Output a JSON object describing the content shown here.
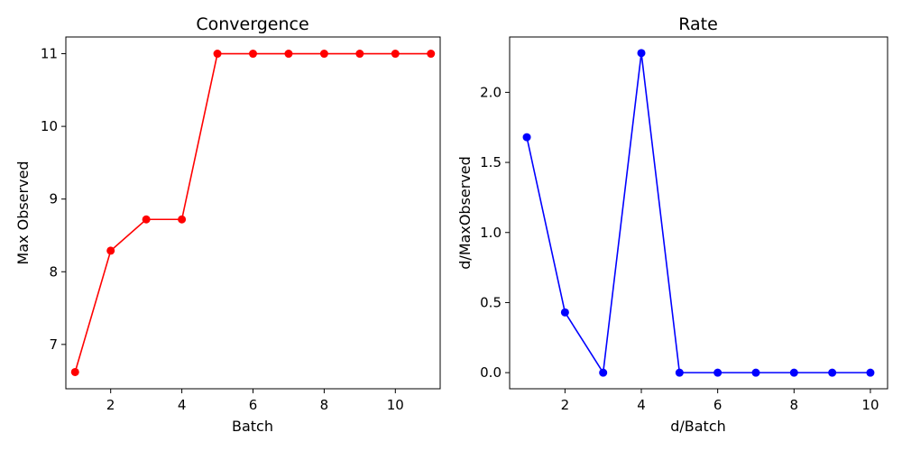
{
  "chart_data": [
    {
      "type": "line",
      "title": "Convergence",
      "xlabel": "Batch",
      "ylabel": "Max Observed",
      "xlim": [
        0.74,
        11.26
      ],
      "ylim": [
        6.39,
        11.23
      ],
      "xticks": [
        2,
        4,
        6,
        8,
        10
      ],
      "yticks": [
        7,
        8,
        9,
        10,
        11
      ],
      "grid": false,
      "color": "#ff0000",
      "marker": "circle",
      "x": [
        1,
        2,
        3,
        4,
        5,
        6,
        7,
        8,
        9,
        10,
        11
      ],
      "y": [
        6.62,
        8.29,
        8.72,
        8.72,
        11.0,
        11.0,
        11.0,
        11.0,
        11.0,
        11.0,
        11.0
      ]
    },
    {
      "type": "line",
      "title": "Rate",
      "xlabel": "d/Batch",
      "ylabel": "d/MaxObserved",
      "xlim": [
        0.55,
        10.45
      ],
      "ylim": [
        -0.115,
        2.395
      ],
      "xticks": [
        2,
        4,
        6,
        8,
        10
      ],
      "yticks": [
        0.0,
        0.5,
        1.0,
        1.5,
        2.0
      ],
      "ytick_format": "1dp",
      "grid": false,
      "color": "#0000ff",
      "marker": "circle",
      "x": [
        1,
        2,
        3,
        4,
        5,
        6,
        7,
        8,
        9,
        10
      ],
      "y": [
        1.68,
        0.43,
        0.0,
        2.28,
        0.0,
        0.0,
        0.0,
        0.0,
        0.0,
        0.0
      ]
    }
  ]
}
